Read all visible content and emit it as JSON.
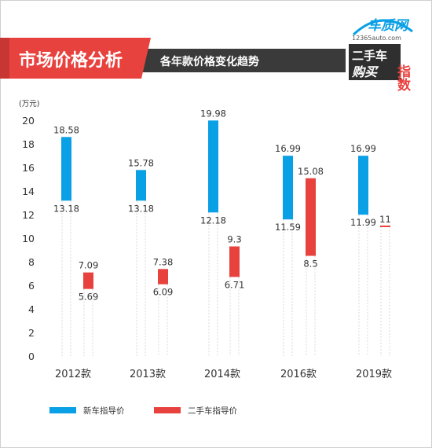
{
  "header": {
    "title": "市场价格分析",
    "subtitle": "各年款价格变化趋势",
    "logo_text": "车质网",
    "logo_url": "12365auto.com",
    "badge_line1": "二手车",
    "badge_line2": "购买",
    "badge_side": "指数"
  },
  "colors": {
    "new": "#0aa0e6",
    "used": "#e8423f",
    "banner_red": "#e8423f",
    "banner_dark": "#3a3a3a"
  },
  "chart_data": {
    "type": "bar",
    "unit_label": "(万元)",
    "ylim": [
      0,
      20
    ],
    "yticks": [
      0,
      2,
      4,
      6,
      8,
      10,
      12,
      14,
      16,
      18,
      20
    ],
    "grid": false,
    "legend_position": "bottom-left",
    "categories": [
      "2012款",
      "2013款",
      "2014款",
      "2016款",
      "2019款"
    ],
    "series": [
      {
        "name": "新车指导价",
        "ranges": [
          {
            "low": 13.18,
            "high": 18.58,
            "low_label": "13.18",
            "high_label": "18.58"
          },
          {
            "low": 13.18,
            "high": 15.78,
            "low_label": "13.18",
            "high_label": "15.78"
          },
          {
            "low": 12.18,
            "high": 19.98,
            "low_label": "12.18",
            "high_label": "19.98"
          },
          {
            "low": 11.59,
            "high": 16.99,
            "low_label": "11.59",
            "high_label": "16.99"
          },
          {
            "low": 11.99,
            "high": 16.99,
            "low_label": "11.99",
            "high_label": "16.99"
          }
        ]
      },
      {
        "name": "二手车指导价",
        "ranges": [
          {
            "low": 5.69,
            "high": 7.09,
            "low_label": "5.69",
            "high_label": "7.09"
          },
          {
            "low": 6.09,
            "high": 7.38,
            "low_label": "6.09",
            "high_label": "7.38"
          },
          {
            "low": 6.71,
            "high": 9.3,
            "low_label": "6.71",
            "high_label": "9.3"
          },
          {
            "low": 8.5,
            "high": 15.08,
            "low_label": "8.5",
            "high_label": "15.08"
          },
          {
            "low": 11,
            "high": 11,
            "low_label": "",
            "high_label": "11"
          }
        ]
      }
    ]
  }
}
